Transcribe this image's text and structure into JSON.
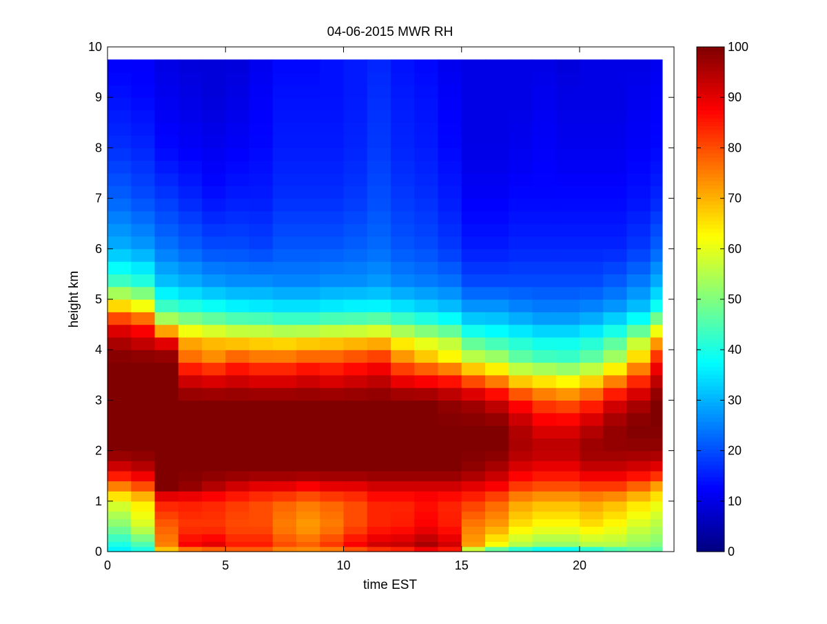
{
  "chart_data": {
    "type": "heatmap",
    "title": "04-06-2015 MWR RH",
    "xlabel": "time EST",
    "ylabel": "height km",
    "xlim": [
      0,
      24
    ],
    "ylim": [
      0,
      10
    ],
    "xticks": [
      0,
      5,
      10,
      15,
      20
    ],
    "yticks": [
      0,
      1,
      2,
      3,
      4,
      5,
      6,
      7,
      8,
      9,
      10
    ],
    "colorbar": {
      "colormap": "jet",
      "range": [
        0,
        100
      ],
      "ticks": [
        0,
        10,
        20,
        30,
        40,
        50,
        60,
        70,
        80,
        90,
        100
      ]
    },
    "grid": false,
    "time_step_hours": 1,
    "time_start_hours": 0,
    "time_end_hours": 23.5,
    "height_top_km": 9.75,
    "height_levels_km": [
      0,
      0.1,
      0.2,
      0.35,
      0.5,
      0.65,
      0.8,
      1.0,
      1.2,
      1.4,
      1.6,
      1.8,
      2.0,
      2.25,
      2.5,
      2.75,
      3.0,
      3.25,
      3.5,
      3.75,
      4.0,
      4.25,
      4.5,
      4.75,
      5.0,
      5.25,
      5.5,
      5.75,
      6.0,
      6.25,
      6.5,
      6.75,
      7.0,
      7.25,
      7.5,
      7.75,
      8.0,
      8.25,
      8.5,
      8.75,
      9.0,
      9.25,
      9.5
    ],
    "profile_anchor_heights_km": [
      0,
      0.15,
      0.5,
      1.0,
      1.3,
      1.6,
      2.0,
      2.5,
      3.0,
      3.5,
      3.8,
      4.2,
      4.5,
      4.8,
      5.3,
      6.0,
      7.0,
      8.0,
      9.0,
      9.75
    ],
    "rh_profiles": [
      [
        35,
        40,
        50,
        60,
        75,
        90,
        100,
        100,
        100,
        100,
        100,
        95,
        88,
        70,
        45,
        30,
        22,
        17,
        14,
        12
      ],
      [
        38,
        45,
        58,
        65,
        80,
        93,
        100,
        100,
        100,
        100,
        100,
        92,
        85,
        65,
        42,
        28,
        20,
        16,
        13,
        12
      ],
      [
        65,
        75,
        78,
        85,
        100,
        100,
        100,
        100,
        100,
        100,
        100,
        88,
        60,
        45,
        32,
        24,
        18,
        13,
        11,
        10
      ],
      [
        70,
        88,
        82,
        85,
        98,
        100,
        100,
        100,
        100,
        90,
        78,
        70,
        55,
        42,
        30,
        22,
        16,
        12,
        10,
        9
      ],
      [
        72,
        90,
        82,
        84,
        95,
        100,
        100,
        100,
        100,
        88,
        75,
        68,
        52,
        40,
        28,
        20,
        14,
        11,
        9,
        9
      ],
      [
        75,
        85,
        80,
        82,
        92,
        100,
        100,
        100,
        100,
        90,
        80,
        66,
        50,
        38,
        27,
        20,
        15,
        12,
        10,
        9
      ],
      [
        75,
        85,
        80,
        80,
        90,
        100,
        100,
        100,
        100,
        88,
        78,
        65,
        50,
        37,
        27,
        19,
        15,
        13,
        12,
        11
      ],
      [
        72,
        80,
        75,
        78,
        90,
        100,
        100,
        100,
        100,
        88,
        78,
        64,
        48,
        36,
        26,
        21,
        17,
        15,
        14,
        13
      ],
      [
        72,
        78,
        72,
        76,
        88,
        100,
        100,
        100,
        100,
        90,
        80,
        65,
        48,
        36,
        26,
        21,
        17,
        15,
        14,
        13
      ],
      [
        72,
        82,
        75,
        78,
        90,
        100,
        100,
        100,
        100,
        88,
        80,
        66,
        50,
        37,
        27,
        21,
        17,
        15,
        14,
        14
      ],
      [
        75,
        88,
        80,
        80,
        90,
        100,
        100,
        100,
        100,
        90,
        82,
        67,
        50,
        38,
        27,
        22,
        18,
        16,
        15,
        15
      ],
      [
        78,
        92,
        84,
        84,
        92,
        100,
        100,
        100,
        100,
        92,
        84,
        68,
        52,
        38,
        28,
        23,
        20,
        18,
        17,
        16
      ],
      [
        80,
        93,
        85,
        84,
        92,
        100,
        100,
        100,
        100,
        86,
        75,
        62,
        48,
        36,
        26,
        21,
        18,
        16,
        15,
        14
      ],
      [
        85,
        96,
        88,
        86,
        92,
        100,
        100,
        100,
        100,
        84,
        70,
        58,
        45,
        34,
        25,
        20,
        17,
        15,
        14,
        13
      ],
      [
        82,
        92,
        85,
        84,
        92,
        100,
        100,
        100,
        98,
        82,
        65,
        55,
        42,
        32,
        24,
        18,
        15,
        13,
        12,
        11
      ],
      [
        50,
        72,
        75,
        82,
        90,
        98,
        100,
        100,
        96,
        75,
        58,
        45,
        35,
        28,
        20,
        15,
        12,
        10,
        10,
        10
      ],
      [
        40,
        62,
        72,
        78,
        88,
        95,
        100,
        100,
        92,
        70,
        55,
        42,
        34,
        28,
        20,
        15,
        12,
        10,
        10,
        10
      ],
      [
        35,
        55,
        65,
        72,
        82,
        90,
        96,
        95,
        85,
        62,
        48,
        40,
        32,
        26,
        20,
        16,
        13,
        11,
        10,
        10
      ],
      [
        32,
        52,
        62,
        70,
        80,
        88,
        95,
        90,
        80,
        60,
        45,
        38,
        30,
        25,
        20,
        16,
        13,
        12,
        11,
        10
      ],
      [
        32,
        52,
        62,
        70,
        80,
        88,
        95,
        90,
        78,
        58,
        44,
        38,
        30,
        25,
        20,
        16,
        13,
        11,
        10,
        9
      ],
      [
        35,
        55,
        65,
        72,
        82,
        92,
        98,
        94,
        82,
        62,
        48,
        40,
        32,
        26,
        20,
        16,
        13,
        11,
        10,
        10
      ],
      [
        40,
        55,
        62,
        70,
        82,
        92,
        98,
        98,
        90,
        70,
        55,
        45,
        36,
        28,
        22,
        16,
        13,
        11,
        10,
        10
      ],
      [
        45,
        52,
        58,
        66,
        78,
        90,
        98,
        100,
        95,
        80,
        68,
        55,
        42,
        32,
        25,
        18,
        14,
        12,
        11,
        10
      ],
      [
        45,
        50,
        55,
        62,
        72,
        88,
        98,
        100,
        100,
        92,
        85,
        70,
        55,
        40,
        30,
        22,
        16,
        13,
        12,
        11
      ]
    ]
  }
}
